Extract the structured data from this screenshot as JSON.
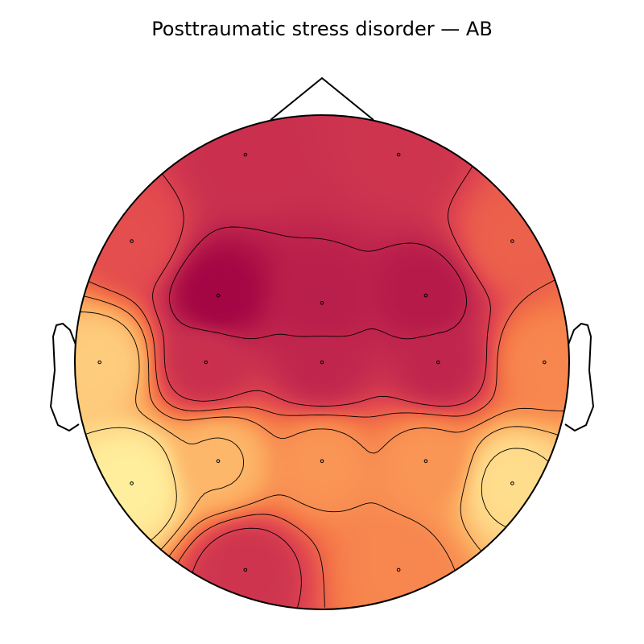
{
  "title": "Posttraumatic stress disorder — AB",
  "chart_data": {
    "type": "heatmap",
    "subtype": "scalp-topomap",
    "title": "Posttraumatic stress disorder — AB",
    "colormap": [
      "#9e0142",
      "#c42a4e",
      "#e2494f",
      "#f57748",
      "#fca95e",
      "#fed585",
      "#fff2a0"
    ],
    "colorbar": false,
    "contour_lines": 6,
    "head_outline_color": "#000000",
    "sensor_marker_color": "#000000",
    "sensors": [
      {
        "x": -0.31,
        "y": 0.84,
        "value": 0.2
      },
      {
        "x": 0.31,
        "y": 0.84,
        "value": 0.22
      },
      {
        "x": -0.77,
        "y": 0.49,
        "value": 0.35
      },
      {
        "x": -0.42,
        "y": 0.27,
        "value": 0.02
      },
      {
        "x": 0.0,
        "y": 0.24,
        "value": 0.12
      },
      {
        "x": 0.42,
        "y": 0.27,
        "value": 0.1
      },
      {
        "x": 0.77,
        "y": 0.49,
        "value": 0.42
      },
      {
        "x": -0.9,
        "y": 0.0,
        "value": 0.8
      },
      {
        "x": -0.47,
        "y": 0.0,
        "value": 0.2
      },
      {
        "x": 0.0,
        "y": 0.0,
        "value": 0.15
      },
      {
        "x": 0.47,
        "y": 0.0,
        "value": 0.15
      },
      {
        "x": 0.9,
        "y": 0.0,
        "value": 0.55
      },
      {
        "x": -0.42,
        "y": -0.4,
        "value": 0.72
      },
      {
        "x": 0.0,
        "y": -0.4,
        "value": 0.6
      },
      {
        "x": 0.42,
        "y": -0.4,
        "value": 0.6
      },
      {
        "x": -0.77,
        "y": -0.49,
        "value": 0.98
      },
      {
        "x": 0.77,
        "y": -0.49,
        "value": 0.88
      },
      {
        "x": -0.31,
        "y": -0.84,
        "value": 0.22
      },
      {
        "x": 0.31,
        "y": -0.84,
        "value": 0.55
      }
    ]
  }
}
